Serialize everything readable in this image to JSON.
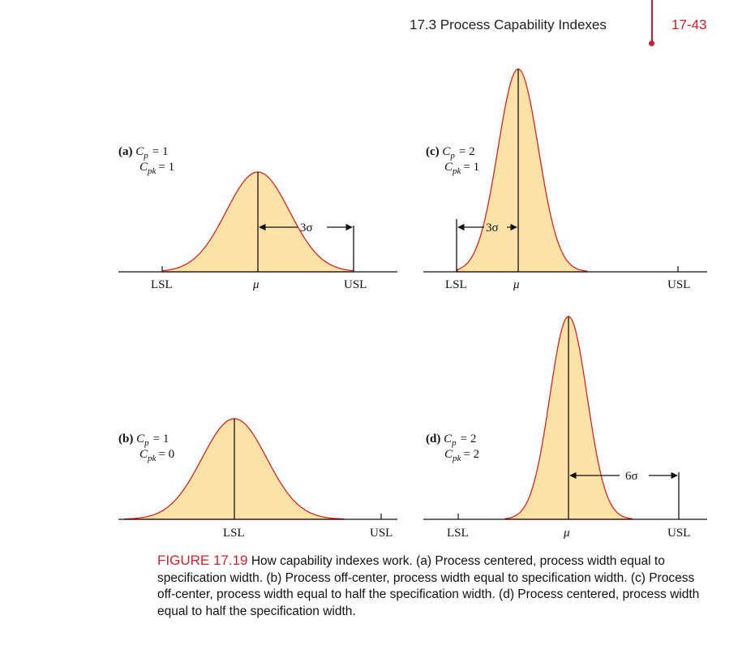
{
  "header": {
    "section_title": "17.3 Process Capability Indexes",
    "page_number": "17-43"
  },
  "panels": {
    "a": {
      "id": "(a)",
      "cp_label": "C",
      "cp_sub": "p",
      "cp_value": "= 1",
      "cpk_label": "C",
      "cpk_sub": "pk",
      "cpk_value": "= 1",
      "lsl": "LSL",
      "mu": "μ",
      "usl": "USL",
      "arrow_label": "3σ"
    },
    "b": {
      "id": "(b)",
      "cp_label": "C",
      "cp_sub": "p",
      "cp_value": "= 1",
      "cpk_label": "C",
      "cpk_sub": "pk",
      "cpk_value": "= 0",
      "lsl": "LSL",
      "usl": "USL"
    },
    "c": {
      "id": "(c)",
      "cp_label": "C",
      "cp_sub": "p",
      "cp_value": "= 2",
      "cpk_label": "C",
      "cpk_sub": "pk",
      "cpk_value": "= 1",
      "lsl": "LSL",
      "mu": "μ",
      "usl": "USL",
      "arrow_label": "3σ"
    },
    "d": {
      "id": "(d)",
      "cp_label": "C",
      "cp_sub": "p",
      "cp_value": "= 2",
      "cpk_label": "C",
      "cpk_sub": "pk",
      "cpk_value": "= 2",
      "lsl": "LSL",
      "mu": "μ",
      "usl": "USL",
      "arrow_label": "6σ"
    }
  },
  "caption": {
    "figure_label": "FIGURE 17.19",
    "text": "How capability indexes work. (a) Process centered, process width equal to specification width. (b) Process off-center, process width equal to specification width. (c) Process off-center, process width equal to half the specification width. (d) Process centered, process width equal to half the specification width."
  },
  "colors": {
    "fill": "#fde3a7",
    "curve": "#d9261c",
    "accent": "#c8202e",
    "ink": "#111111"
  }
}
